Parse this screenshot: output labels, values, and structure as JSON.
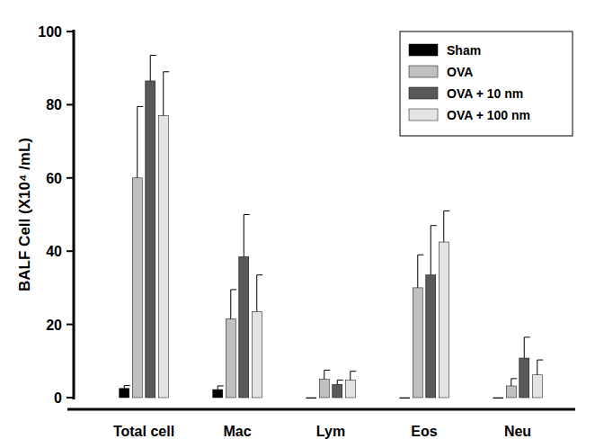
{
  "chart_data": {
    "type": "bar",
    "y_label": "BALF Cell (X10⁴ /mL)",
    "categories": [
      "Total cell",
      "Mac",
      "Lym",
      "Eos",
      "Neu"
    ],
    "series": [
      {
        "name": "Sham",
        "color": "#000000",
        "values": [
          2.5,
          2.2,
          0,
          0,
          0
        ],
        "errors": [
          0.8,
          1.0,
          0,
          0,
          0
        ]
      },
      {
        "name": "OVA",
        "color": "#c0c0c0",
        "values": [
          60,
          21.5,
          5,
          30,
          3.2
        ],
        "errors": [
          19.5,
          8,
          2.5,
          9,
          2
        ]
      },
      {
        "name": "OVA + 10 nm",
        "color": "#595959",
        "values": [
          86.5,
          38.5,
          3.6,
          33.5,
          10.8
        ],
        "errors": [
          7,
          11.5,
          1.2,
          13.5,
          5.7
        ]
      },
      {
        "name": "OVA + 100 nm",
        "color": "#e4e4e4",
        "values": [
          77,
          23.5,
          4.8,
          42.5,
          6.2
        ],
        "errors": [
          12,
          10,
          2.4,
          8.5,
          4.1
        ]
      }
    ],
    "ylim": [
      0,
      100
    ],
    "yticks": [
      0,
      20,
      40,
      60,
      80,
      100
    ],
    "grid": false,
    "legend": "upper right"
  }
}
